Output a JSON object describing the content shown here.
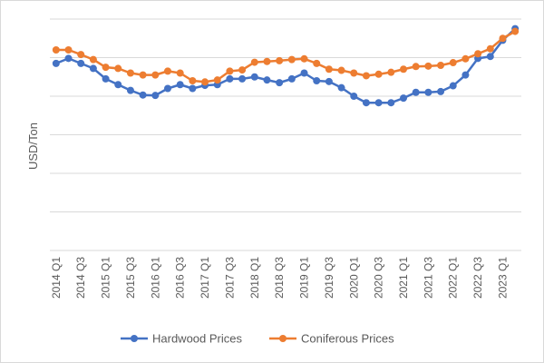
{
  "chart_data": {
    "type": "line",
    "title": "",
    "xlabel": "",
    "ylabel": "USD/Ton",
    "ylim": [
      0,
      6
    ],
    "grid": true,
    "legend_position": "bottom",
    "categories": [
      "2014 Q1",
      "2014 Q2",
      "2014 Q3",
      "2014 Q4",
      "2015 Q1",
      "2015 Q2",
      "2015 Q3",
      "2015 Q4",
      "2016 Q1",
      "2016 Q2",
      "2016 Q3",
      "2016 Q4",
      "2017 Q1",
      "2017 Q2",
      "2017 Q3",
      "2017 Q4",
      "2018 Q1",
      "2018 Q2",
      "2018 Q3",
      "2018 Q4",
      "2019 Q1",
      "2019 Q2",
      "2019 Q3",
      "2019 Q4",
      "2020 Q1",
      "2020 Q2",
      "2020 Q3",
      "2020 Q4",
      "2021 Q1",
      "2021 Q2",
      "2021 Q3",
      "2021 Q4",
      "2022 Q1",
      "2022 Q2",
      "2022 Q3",
      "2022 Q4",
      "2023 Q1",
      "2023 Q2"
    ],
    "x_tick_labels": [
      "2014 Q1",
      "2014 Q3",
      "2015 Q1",
      "2015 Q3",
      "2016 Q1",
      "2016 Q3",
      "2017 Q1",
      "2017 Q3",
      "2018 Q1",
      "2018 Q3",
      "2019 Q1",
      "2019 Q3",
      "2020 Q1",
      "2020 Q3",
      "2021 Q1",
      "2021 Q3",
      "2022 Q1",
      "2022 Q3",
      "2023 Q1"
    ],
    "series": [
      {
        "name": "Hardwood Prices",
        "color": "#4472C4",
        "values": [
          4.85,
          4.98,
          4.85,
          4.72,
          4.45,
          4.3,
          4.15,
          4.03,
          4.02,
          4.2,
          4.3,
          4.2,
          4.28,
          4.3,
          4.45,
          4.45,
          4.5,
          4.42,
          4.35,
          4.45,
          4.6,
          4.4,
          4.38,
          4.22,
          4.0,
          3.83,
          3.83,
          3.83,
          3.95,
          4.1,
          4.1,
          4.12,
          4.27,
          4.55,
          4.98,
          5.03,
          5.45,
          5.75
        ]
      },
      {
        "name": "Coniferous Prices",
        "color": "#ED7D31",
        "values": [
          5.2,
          5.2,
          5.08,
          4.95,
          4.75,
          4.72,
          4.6,
          4.55,
          4.55,
          4.65,
          4.6,
          4.4,
          4.37,
          4.42,
          4.65,
          4.68,
          4.88,
          4.9,
          4.92,
          4.95,
          4.97,
          4.85,
          4.7,
          4.67,
          4.6,
          4.53,
          4.57,
          4.62,
          4.7,
          4.77,
          4.78,
          4.8,
          4.87,
          4.97,
          5.1,
          5.23,
          5.5,
          5.68
        ]
      }
    ]
  }
}
